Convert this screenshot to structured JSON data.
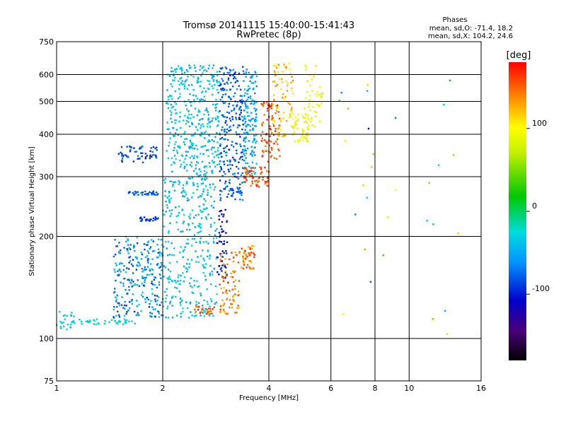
{
  "chart_data": {
    "type": "scatter",
    "title": "Tromsø 20141115 15:40:00-15:41:43",
    "subtitle": "RwPretec (8p)",
    "xlabel": "Frequency [MHz]",
    "ylabel": "Stationary phase Virtual Height [km]",
    "x_scale": "log",
    "y_scale": "log",
    "xlim": [
      1,
      16
    ],
    "ylim": [
      75,
      750
    ],
    "x_ticks": [
      1,
      2,
      4,
      6,
      8,
      10,
      16
    ],
    "y_ticks": [
      75,
      100,
      200,
      300,
      400,
      500,
      600,
      750
    ],
    "grid": true,
    "stats": {
      "title": "Phases",
      "line1": "mean, sd,O: -71.4, 18.2",
      "line2": "mean, sd,X: 104.2, 24.6"
    },
    "colorbar": {
      "label": "[deg]",
      "ticks": [
        100,
        0,
        -100
      ],
      "range": [
        -180,
        180
      ]
    },
    "clusters": [
      {
        "x": [
          1.0,
          1.12
        ],
        "y": [
          105,
          122
        ],
        "phase": [
          -40,
          -20
        ],
        "n": 25
      },
      {
        "x": [
          1.12,
          1.7
        ],
        "y": [
          110,
          114
        ],
        "phase": [
          -30,
          -15
        ],
        "n": 40
      },
      {
        "x": [
          1.45,
          2.0
        ],
        "y": [
          115,
          200
        ],
        "phase": [
          -95,
          -30
        ],
        "n": 260
      },
      {
        "x": [
          1.5,
          1.95
        ],
        "y": [
          330,
          370
        ],
        "phase": [
          -100,
          -70
        ],
        "n": 60
      },
      {
        "x": [
          1.6,
          1.95
        ],
        "y": [
          265,
          272
        ],
        "phase": [
          -90,
          -70
        ],
        "n": 35
      },
      {
        "x": [
          1.7,
          1.95
        ],
        "y": [
          222,
          228
        ],
        "phase": [
          -100,
          -80
        ],
        "n": 25
      },
      {
        "x": [
          2.0,
          2.85
        ],
        "y": [
          115,
          300
        ],
        "phase": [
          -60,
          -20
        ],
        "n": 340
      },
      {
        "x": [
          2.05,
          2.9
        ],
        "y": [
          300,
          640
        ],
        "phase": [
          -60,
          -20
        ],
        "n": 380
      },
      {
        "x": [
          2.45,
          2.8
        ],
        "y": [
          118,
          125
        ],
        "phase": [
          130,
          170
        ],
        "n": 25
      },
      {
        "x": [
          2.85,
          3.05
        ],
        "y": [
          150,
          240
        ],
        "phase": [
          -120,
          -90
        ],
        "n": 50
      },
      {
        "x": [
          2.9,
          3.3
        ],
        "y": [
          118,
          180
        ],
        "phase": [
          120,
          165
        ],
        "n": 80
      },
      {
        "x": [
          3.3,
          3.65
        ],
        "y": [
          160,
          190
        ],
        "phase": [
          120,
          165
        ],
        "n": 50
      },
      {
        "x": [
          2.9,
          3.4
        ],
        "y": [
          255,
          640
        ],
        "phase": [
          -100,
          -60
        ],
        "n": 260
      },
      {
        "x": [
          3.4,
          3.7
        ],
        "y": [
          300,
          640
        ],
        "phase": [
          -70,
          -35
        ],
        "n": 150
      },
      {
        "x": [
          3.4,
          4.0
        ],
        "y": [
          280,
          320
        ],
        "phase": [
          140,
          175
        ],
        "n": 60
      },
      {
        "x": [
          3.8,
          4.3
        ],
        "y": [
          330,
          500
        ],
        "phase": [
          140,
          175
        ],
        "n": 80
      },
      {
        "x": [
          4.1,
          4.7
        ],
        "y": [
          390,
          650
        ],
        "phase": [
          100,
          140
        ],
        "n": 80
      },
      {
        "x": [
          4.6,
          5.2
        ],
        "y": [
          380,
          460
        ],
        "phase": [
          80,
          110
        ],
        "n": 60
      },
      {
        "x": [
          5.0,
          5.7
        ],
        "y": [
          420,
          650
        ],
        "phase": [
          80,
          110
        ],
        "n": 50
      },
      {
        "x": [
          6.2,
          14.0
        ],
        "y": [
          100,
          610
        ],
        "phase": [
          -120,
          150
        ],
        "n": 30
      }
    ]
  }
}
